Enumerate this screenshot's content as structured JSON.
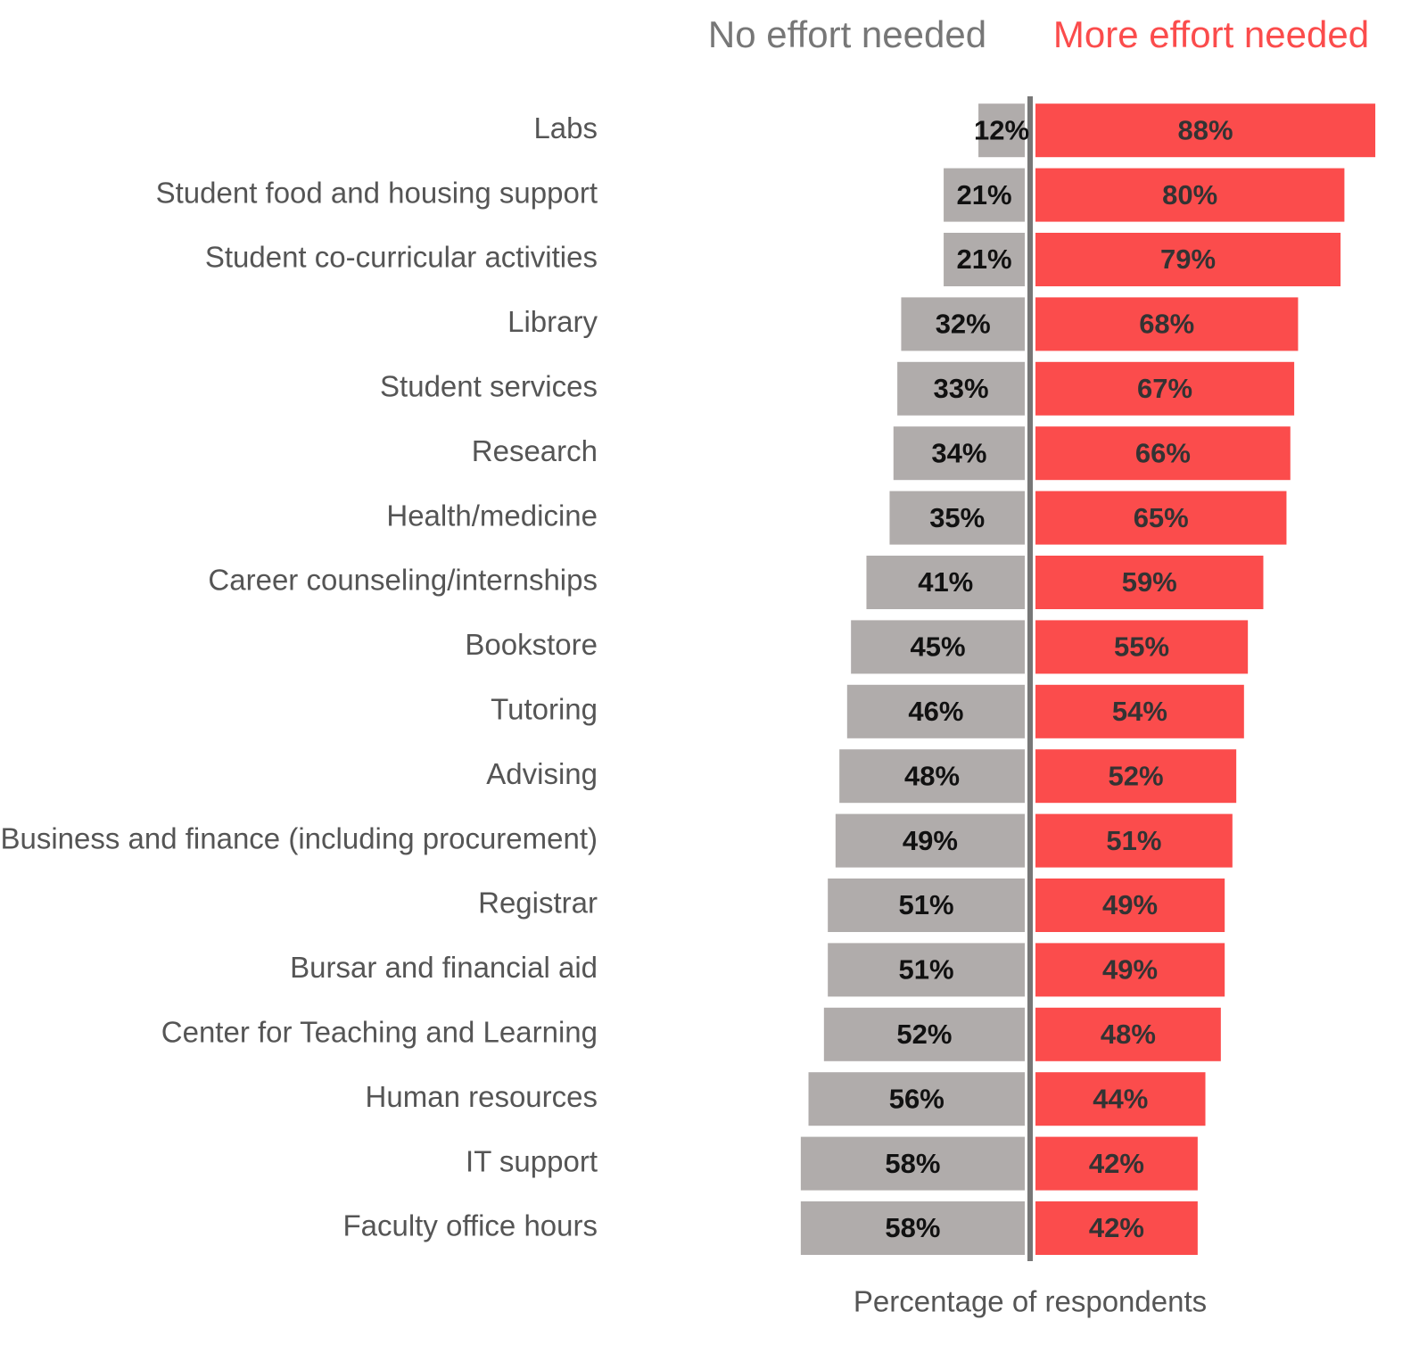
{
  "chart_data": {
    "type": "diverging_bar",
    "x_label": "Percentage of respondents",
    "categories": [
      "Labs",
      "Student food and housing support",
      "Student co-curricular activities",
      "Library",
      "Student services",
      "Research",
      "Health/medicine",
      "Career counseling/internships",
      "Bookstore",
      "Tutoring",
      "Advising",
      "Business and finance (including procurement)",
      "Registrar",
      "Bursar and financial aid",
      "Center for Teaching and Learning",
      "Human resources",
      "IT support",
      "Faculty office hours"
    ],
    "series": [
      {
        "name": "No effort needed",
        "color": "#b0acab",
        "values": [
          12,
          21,
          21,
          32,
          33,
          34,
          35,
          41,
          45,
          46,
          48,
          49,
          51,
          51,
          52,
          56,
          58,
          58
        ],
        "value_labels": [
          "12%",
          "21%",
          "21%",
          "32%",
          "33%",
          "34%",
          "35%",
          "41%",
          "45%",
          "46%",
          "48%",
          "49%",
          "51%",
          "51%",
          "52%",
          "56%",
          "58%",
          "58%"
        ]
      },
      {
        "name": "More effort needed",
        "color": "#fb4c4c",
        "values": [
          88,
          80,
          79,
          68,
          67,
          66,
          65,
          59,
          55,
          54,
          52,
          51,
          49,
          49,
          48,
          44,
          42,
          42
        ],
        "value_labels": [
          "88%",
          "80%",
          "79%",
          "68%",
          "67%",
          "66%",
          "65%",
          "59%",
          "55%",
          "54%",
          "52%",
          "51%",
          "49%",
          "49%",
          "48%",
          "44%",
          "42%",
          "42%"
        ]
      }
    ],
    "xlim": [
      0,
      100
    ]
  }
}
